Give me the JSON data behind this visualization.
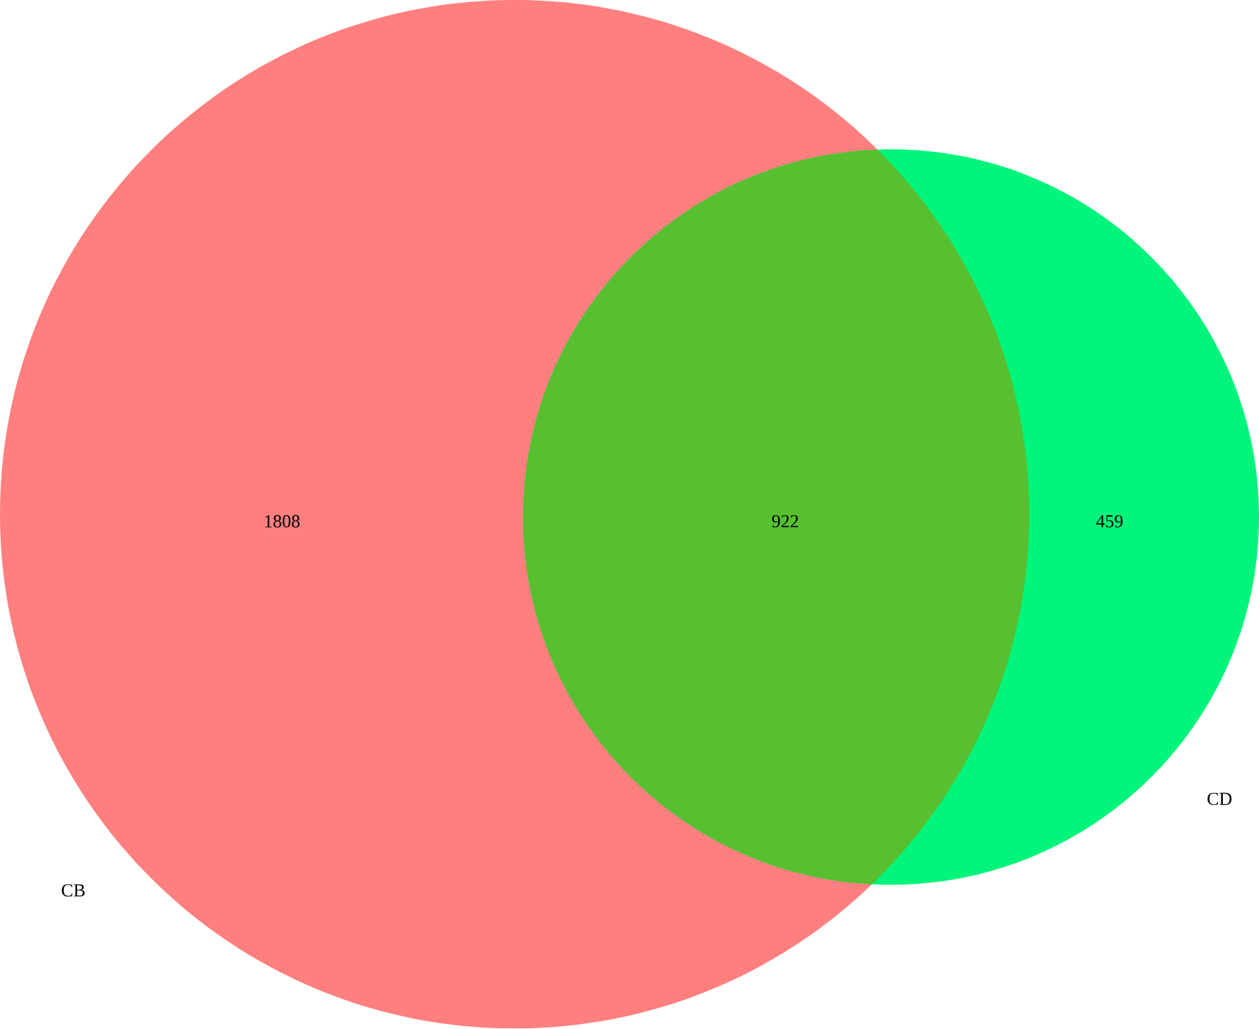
{
  "chart_data": {
    "type": "other",
    "categories": [
      null,
      null,
      null
    ],
    "values": [
      1808,
      922,
      459
    ],
    "colors": [
      "#ff7f7f",
      "#58bf30",
      "#00f57a"
    ],
    "data_labels": true,
    "annotations": [
      "CB",
      "CD"
    ]
  }
}
